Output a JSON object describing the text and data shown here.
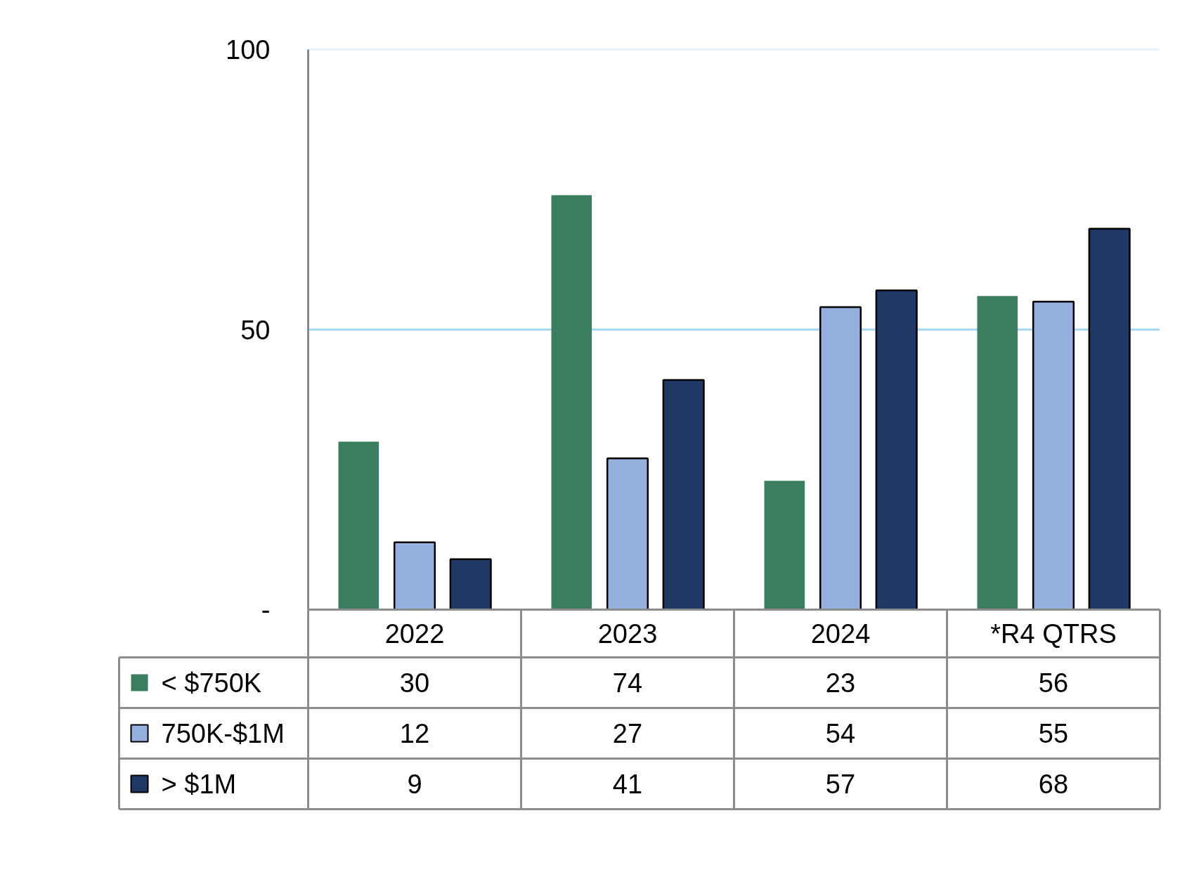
{
  "chart_data": {
    "type": "bar",
    "categories": [
      "2022",
      "2023",
      "2024",
      "*R4 QTRS"
    ],
    "series": [
      {
        "name": "< $750K",
        "color": "#3a7d5f",
        "values": [
          30,
          74,
          23,
          56
        ]
      },
      {
        "name": "750K-$1M",
        "color": "#95b0de",
        "values": [
          12,
          27,
          54,
          55
        ]
      },
      {
        "name": "> $1M",
        "color": "#203864",
        "values": [
          9,
          41,
          57,
          68
        ]
      }
    ],
    "ylim": [
      0,
      100
    ],
    "yticks": [
      {
        "value": 0,
        "label": "-"
      },
      50,
      100
    ],
    "ref_lines": [
      {
        "axis": "y",
        "value": 50,
        "color": "#a3d8ef"
      },
      {
        "axis": "y",
        "value": 100,
        "color": "#e6f2fb"
      }
    ],
    "legend": "bottom",
    "data_labels": true
  }
}
